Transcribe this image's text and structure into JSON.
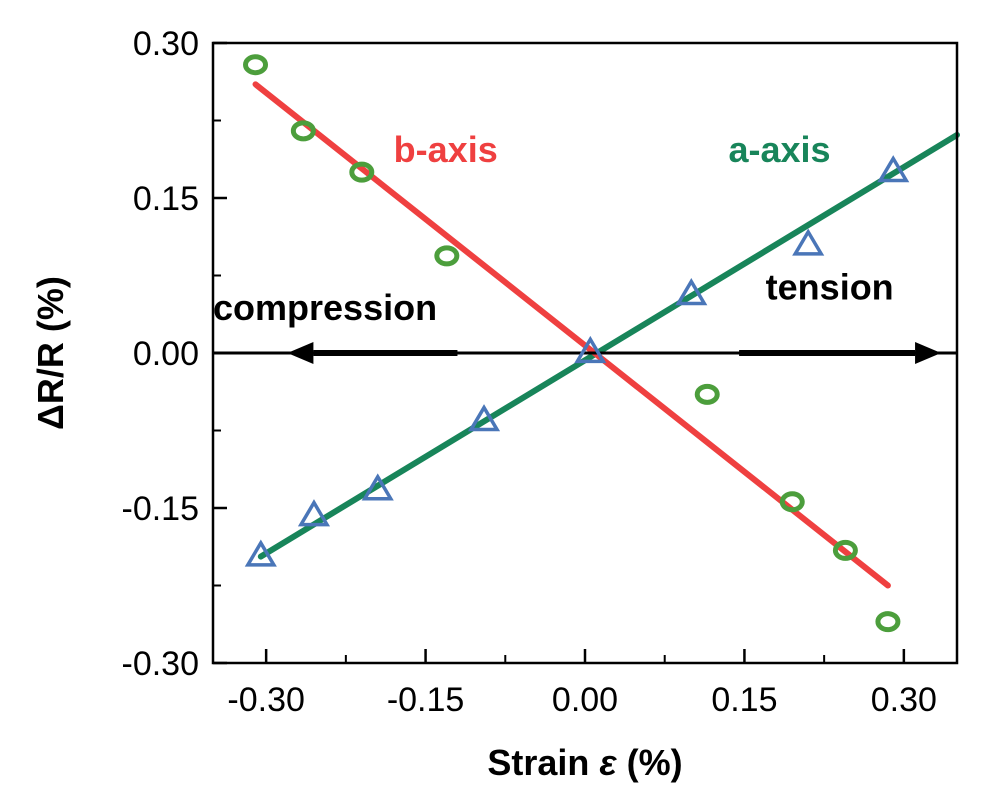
{
  "chart_data": {
    "type": "scatter",
    "xlabel": "Strain ε (%)",
    "xlabel_parts": {
      "main": "Strain ",
      "symbol": "ε",
      "unit": " (%)"
    },
    "ylabel": "ΔR/R (%)",
    "xlim": [
      -0.35,
      0.35
    ],
    "ylim": [
      -0.3,
      0.3
    ],
    "x_ticks": [
      -0.3,
      -0.15,
      0.0,
      0.15,
      0.3
    ],
    "x_tick_labels": [
      "-0.30",
      "-0.15",
      "0.00",
      "0.15",
      "0.30"
    ],
    "y_ticks": [
      -0.3,
      -0.15,
      0.0,
      0.15,
      0.3
    ],
    "y_tick_labels": [
      "-0.30",
      "-0.15",
      "0.00",
      "0.15",
      "0.30"
    ],
    "grid": false,
    "series": [
      {
        "name": "a-axis",
        "marker": "triangle",
        "marker_color": "#4a76b8",
        "x": [
          -0.305,
          -0.255,
          -0.195,
          -0.095,
          0.005,
          0.1,
          0.21,
          0.29
        ],
        "y": [
          -0.197,
          -0.158,
          -0.133,
          -0.066,
          0.0,
          0.056,
          0.104,
          0.175
        ]
      },
      {
        "name": "b-axis",
        "marker": "circle",
        "marker_color": "#4c9e3c",
        "x": [
          -0.31,
          -0.265,
          -0.21,
          -0.13,
          0.115,
          0.195,
          0.245,
          0.285
        ],
        "y": [
          0.279,
          0.215,
          0.175,
          0.094,
          -0.04,
          -0.144,
          -0.191,
          -0.26
        ]
      }
    ],
    "fit_lines": [
      {
        "name": "a-axis",
        "color": "#18855a",
        "x": [
          -0.305,
          0.35
        ],
        "y": [
          -0.197,
          0.211
        ]
      },
      {
        "name": "b-axis",
        "color": "#ef4040",
        "x": [
          -0.31,
          0.285
        ],
        "y": [
          0.26,
          -0.225
        ]
      }
    ],
    "arrows": [
      {
        "label": "compression",
        "direction": "left",
        "x_from": -0.12,
        "x_to": -0.28,
        "y": 0.0
      },
      {
        "label": "tension",
        "direction": "right",
        "x_from": 0.145,
        "x_to": 0.335,
        "y": 0.0
      }
    ],
    "annotations": [
      {
        "text": "b-axis",
        "color": "#ef4040",
        "x": -0.18,
        "y": 0.185
      },
      {
        "text": "a-axis",
        "color": "#18855a",
        "x": 0.135,
        "y": 0.185
      },
      {
        "text": "compression",
        "color": "#000000",
        "x": -0.35,
        "y": 0.032
      },
      {
        "text": "tension",
        "color": "#000000",
        "x": 0.17,
        "y": 0.052
      }
    ]
  }
}
